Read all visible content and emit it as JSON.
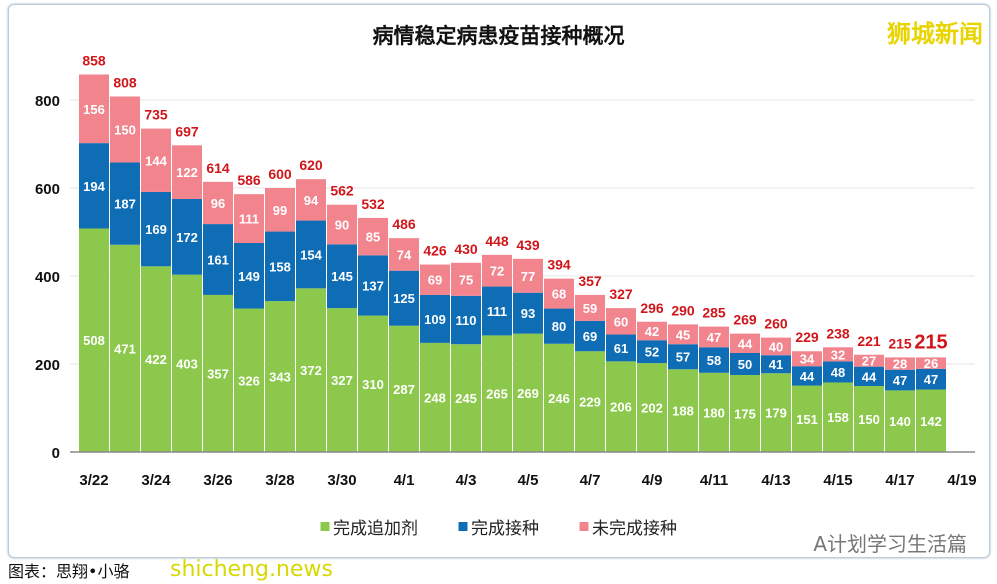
{
  "chart_data": {
    "type": "bar",
    "stacked": true,
    "title": "病情稳定病患疫苗接种概况",
    "categories": [
      "3/22",
      "3/23",
      "3/24",
      "3/25",
      "3/26",
      "3/27",
      "3/28",
      "3/29",
      "3/30",
      "3/31",
      "4/1",
      "4/2",
      "4/3",
      "4/4",
      "4/5",
      "4/6",
      "4/7",
      "4/8",
      "4/9",
      "4/10",
      "4/11",
      "4/12",
      "4/13",
      "4/14",
      "4/15",
      "4/16",
      "4/17",
      "4/18"
    ],
    "x_tick_labels": [
      "3/22",
      "3/24",
      "3/26",
      "3/28",
      "3/30",
      "4/1",
      "4/3",
      "4/5",
      "4/7",
      "4/9",
      "4/11",
      "4/13",
      "4/15",
      "4/17",
      "4/19"
    ],
    "series": [
      {
        "name": "完成追加剂",
        "color": "#8cc84b",
        "values": [
          508,
          471,
          422,
          403,
          357,
          326,
          343,
          372,
          327,
          310,
          287,
          248,
          245,
          265,
          269,
          246,
          229,
          206,
          202,
          188,
          180,
          175,
          179,
          151,
          158,
          150,
          140,
          142
        ]
      },
      {
        "name": "完成接种",
        "color": "#0f6db5",
        "values": [
          194,
          187,
          169,
          172,
          161,
          149,
          158,
          154,
          145,
          137,
          125,
          109,
          110,
          111,
          93,
          80,
          69,
          61,
          52,
          57,
          58,
          50,
          41,
          44,
          48,
          44,
          47,
          47
        ]
      },
      {
        "name": "未完成接种",
        "color": "#f2848e",
        "values": [
          156,
          150,
          144,
          122,
          96,
          111,
          99,
          94,
          90,
          85,
          74,
          69,
          75,
          72,
          77,
          68,
          59,
          60,
          42,
          45,
          47,
          44,
          40,
          34,
          32,
          27,
          28,
          26
        ]
      }
    ],
    "totals": [
      858,
      808,
      735,
      697,
      614,
      586,
      600,
      620,
      562,
      532,
      486,
      426,
      430,
      448,
      439,
      394,
      357,
      327,
      296,
      290,
      285,
      269,
      260,
      229,
      238,
      221,
      215,
      215
    ],
    "y_ticks": [
      0,
      200,
      400,
      600,
      800
    ],
    "ylim": [
      0,
      800
    ],
    "grid": true,
    "legend_position": "bottom",
    "total_label_color": "#d0161b"
  },
  "watermarks": {
    "top_right": "狮城新闻",
    "bottom_left": "shicheng.news",
    "bottom_right": "A计划学习生活篇"
  },
  "caption": "图表：思翔•小骆"
}
